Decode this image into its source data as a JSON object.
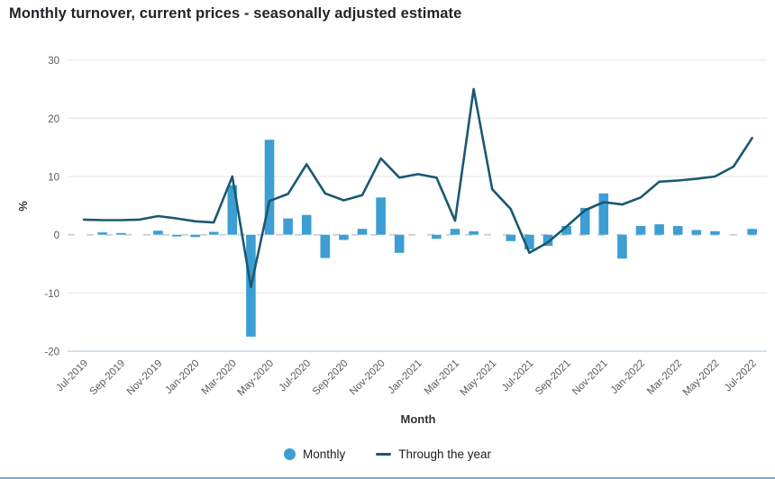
{
  "chart_data": {
    "type": "combo",
    "title": "Monthly turnover, current prices - seasonally adjusted estimate",
    "xlabel": "Month",
    "ylabel": "%",
    "ylim": [
      -20,
      30
    ],
    "y_ticks": [
      30,
      20,
      10,
      0,
      -10,
      -20
    ],
    "grid": true,
    "legend_position": "bottom",
    "categories": [
      "Jul-2019",
      "Aug-2019",
      "Sep-2019",
      "Oct-2019",
      "Nov-2019",
      "Dec-2019",
      "Jan-2020",
      "Feb-2020",
      "Mar-2020",
      "Apr-2020",
      "May-2020",
      "Jun-2020",
      "Jul-2020",
      "Aug-2020",
      "Sep-2020",
      "Oct-2020",
      "Nov-2020",
      "Dec-2020",
      "Jan-2021",
      "Feb-2021",
      "Mar-2021",
      "Apr-2021",
      "May-2021",
      "Jun-2021",
      "Jul-2021",
      "Aug-2021",
      "Sep-2021",
      "Oct-2021",
      "Nov-2021",
      "Dec-2021",
      "Jan-2022",
      "Feb-2022",
      "Mar-2022",
      "Apr-2022",
      "May-2022",
      "Jun-2022",
      "Jul-2022"
    ],
    "x_tick_labels": [
      "Jul-2019",
      "Sep-2019",
      "Nov-2019",
      "Jan-2020",
      "Mar-2020",
      "May-2020",
      "Jul-2020",
      "Sep-2020",
      "Nov-2020",
      "Jan-2021",
      "Mar-2021",
      "May-2021",
      "Jul-2021",
      "Sep-2021",
      "Nov-2021",
      "Jan-2022",
      "Mar-2022",
      "May-2022",
      "Jul-2022"
    ],
    "series": [
      {
        "name": "Monthly",
        "type": "bar",
        "color": "#3D9ED3",
        "values": [
          0,
          0.4,
          0.3,
          0,
          0.7,
          -0.3,
          -0.4,
          0.5,
          8.5,
          -17.5,
          16.3,
          2.8,
          3.4,
          -4.0,
          -0.9,
          1.0,
          6.4,
          -3.1,
          0,
          -0.7,
          1.0,
          0.6,
          0,
          -1.1,
          -2.5,
          -1.9,
          1.5,
          4.6,
          7.1,
          -4.1,
          1.5,
          1.8,
          1.5,
          0.8,
          0.6,
          0,
          1.0
        ]
      },
      {
        "name": "Through the year",
        "type": "line",
        "color": "#1B5872",
        "values": [
          2.6,
          2.5,
          2.5,
          2.6,
          3.2,
          2.8,
          2.3,
          2.1,
          10.0,
          -9.0,
          5.8,
          7.0,
          12.1,
          7.1,
          5.9,
          6.8,
          13.1,
          9.8,
          10.4,
          9.8,
          2.4,
          25.0,
          7.8,
          4.4,
          -3.1,
          -1.3,
          1.4,
          4.2,
          5.6,
          5.2,
          6.4,
          9.1,
          9.3,
          9.6,
          10.0,
          11.7,
          16.6
        ]
      }
    ]
  }
}
